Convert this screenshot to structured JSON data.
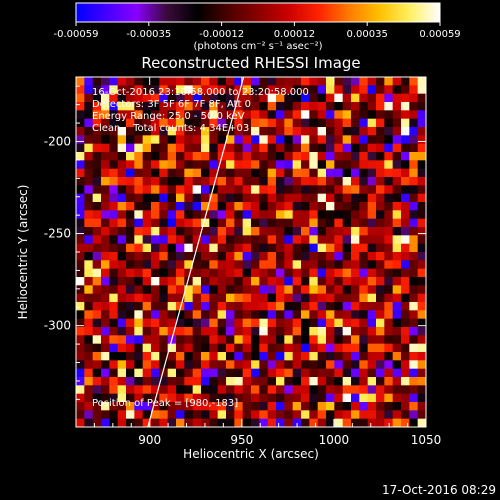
{
  "chart_data": {
    "type": "heatmap",
    "title": "Reconstructed RHESSI Image",
    "xlabel": "Heliocentric X (arcsec)",
    "ylabel": "Heliocentric Y (arcsec)",
    "xlim": [
      860,
      1050
    ],
    "ylim": [
      -355,
      -165
    ],
    "x_ticks": [
      900,
      950,
      1000,
      1050
    ],
    "y_ticks": [
      -200,
      -250,
      -300
    ],
    "colorbar": {
      "ticks": [
        "-0.00059",
        "-0.00035",
        "-0.00012",
        "0.00012",
        "0.00035",
        "0.00059"
      ],
      "unit_label": "(photons cm⁻² s⁻¹ asec⁻²)",
      "colors": [
        "#0000ff",
        "#4400ff",
        "#8800ff",
        "#3a0a3a",
        "#000000",
        "#4a0000",
        "#8a0000",
        "#cc0000",
        "#ff2200",
        "#ff7a00",
        "#ffc000",
        "#fff060",
        "#ffffff"
      ],
      "range": [
        -0.00059,
        0.00059
      ]
    },
    "annotations": [
      "16-Oct-2016 23:10:58.000 to 23:20:58.000",
      "Detectors: 3F 5F 6F 7F 8F, Att 0",
      "Energy Range: 25.0 - 50.0 keV",
      "Clean    Total counts: 4.34E+03"
    ],
    "peak_label": "Position of Peak = [980,-183]",
    "limb_line": {
      "x": [
        899,
        951
      ],
      "y": [
        -355,
        -165
      ]
    },
    "grid_size": 42
  },
  "timestamp": "17-Oct-2016 08:29"
}
